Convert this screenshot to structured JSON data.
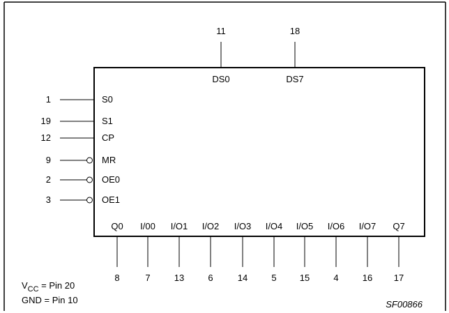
{
  "diagram": {
    "top_pins": [
      {
        "number": "11",
        "name": "DS0"
      },
      {
        "number": "18",
        "name": "DS7"
      }
    ],
    "left_pins": [
      {
        "number": "1",
        "name": "S0",
        "inverted": false
      },
      {
        "number": "19",
        "name": "S1",
        "inverted": false
      },
      {
        "number": "12",
        "name": "CP",
        "inverted": false
      },
      {
        "number": "9",
        "name": "MR",
        "inverted": true
      },
      {
        "number": "2",
        "name": "OE0",
        "inverted": true
      },
      {
        "number": "3",
        "name": "OE1",
        "inverted": true
      }
    ],
    "bottom_pins": [
      {
        "number": "8",
        "name": "Q0"
      },
      {
        "number": "7",
        "name": "I/00"
      },
      {
        "number": "13",
        "name": "I/O1"
      },
      {
        "number": "6",
        "name": "I/O2"
      },
      {
        "number": "14",
        "name": "I/O3"
      },
      {
        "number": "5",
        "name": "I/O4"
      },
      {
        "number": "15",
        "name": "I/O5"
      },
      {
        "number": "4",
        "name": "I/O6"
      },
      {
        "number": "16",
        "name": "I/O7"
      },
      {
        "number": "17",
        "name": "Q7"
      }
    ],
    "footer": {
      "vcc_main": "V",
      "vcc_sub": "CC",
      "vcc_rest": " = Pin 20",
      "gnd": "GND = Pin 10",
      "figure_code": "SF00866"
    }
  }
}
